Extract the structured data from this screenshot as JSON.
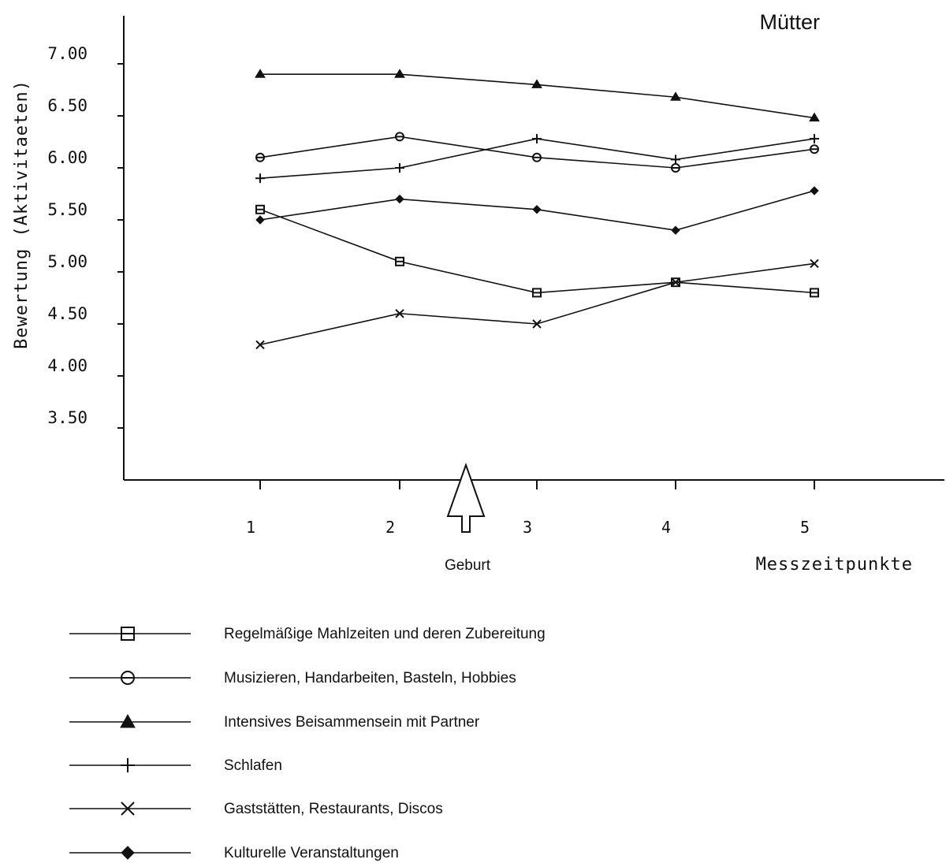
{
  "chart_data": {
    "type": "line",
    "title": "Mütter",
    "xlabel": "Messzeitpunkte",
    "ylabel": "Bewertung (Aktivitaeten)",
    "categories": [
      "1",
      "2",
      "3",
      "4",
      "5"
    ],
    "y_ticks": [
      "7.00",
      "6.50",
      "6.00",
      "5.50",
      "5.00",
      "4.50",
      "4.00",
      "3.50"
    ],
    "ylim": [
      3.0,
      7.5
    ],
    "grid": false,
    "legend_position": "bottom",
    "annotation": "Geburt",
    "annotation_x": 2.5,
    "series": [
      {
        "name": "Regelmäßige Mahlzeiten und deren Zubereitung",
        "marker": "square",
        "values": [
          5.6,
          5.1,
          4.8,
          4.9,
          4.8
        ]
      },
      {
        "name": "Musizieren, Handarbeiten, Basteln, Hobbies",
        "marker": "circle",
        "values": [
          6.1,
          6.3,
          6.1,
          6.0,
          6.18
        ]
      },
      {
        "name": "Intensives Beisammensein mit Partner",
        "marker": "triangle",
        "values": [
          6.9,
          6.9,
          6.8,
          6.68,
          6.48
        ]
      },
      {
        "name": "Schlafen",
        "marker": "plus",
        "values": [
          5.9,
          6.0,
          6.28,
          6.08,
          6.28
        ]
      },
      {
        "name": "Gaststätten, Restaurants, Discos",
        "marker": "cross",
        "values": [
          4.3,
          4.6,
          4.5,
          4.9,
          5.08
        ]
      },
      {
        "name": "Kulturelle Veranstaltungen",
        "marker": "diamond",
        "values": [
          5.5,
          5.7,
          5.6,
          5.4,
          5.78
        ]
      }
    ],
    "colors": {
      "line": "#111111",
      "background": "#ffffff"
    }
  }
}
